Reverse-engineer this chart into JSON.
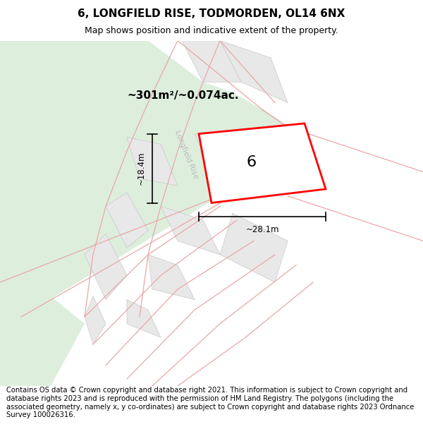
{
  "title": "6, LONGFIELD RISE, TODMORDEN, OL14 6NX",
  "subtitle": "Map shows position and indicative extent of the property.",
  "area_label": "~301m²/~0.074ac.",
  "number_label": "6",
  "width_label": "~28.1m",
  "height_label": "~18.4m",
  "footer": "Contains OS data © Crown copyright and database right 2021. This information is subject to Crown copyright and database rights 2023 and is reproduced with the permission of HM Land Registry. The polygons (including the associated geometry, namely x, y co-ordinates) are subject to Crown copyright and database rights 2023 Ordnance Survey 100026316.",
  "background_color": "#ffffff",
  "map_bg_color": "#f7f7f7",
  "green_patch_color": "#ddeedd",
  "road_line_color": "#e8a8a8",
  "property_outline_color": "#ff0000",
  "block_fill_color": "#e8e8e8",
  "block_edge_color": "#c8c8c8",
  "road_text_color": "#bbbbbb",
  "road_name": "Longfield Rise",
  "title_fontsize": 11,
  "subtitle_fontsize": 9,
  "footer_fontsize": 7.2
}
